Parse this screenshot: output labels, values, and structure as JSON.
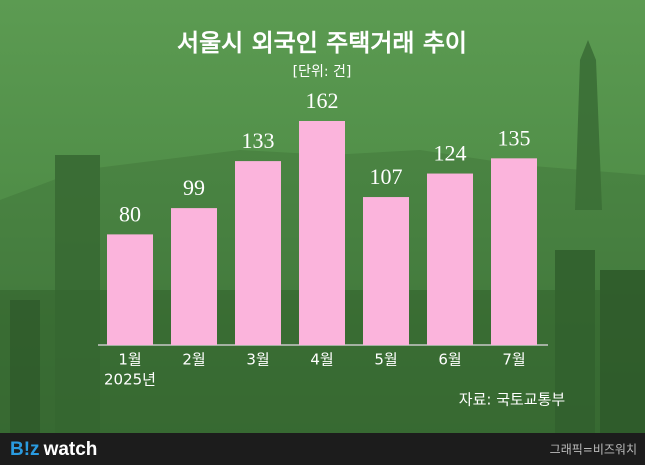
{
  "chart_data": {
    "type": "bar",
    "title": "서울시 외국인 주택거래 추이",
    "subtitle": "[단위: 건]",
    "categories": [
      "1월",
      "2월",
      "3월",
      "4월",
      "5월",
      "6월",
      "7월"
    ],
    "values": [
      80,
      99,
      133,
      162,
      107,
      124,
      135
    ],
    "color": "#fbb4dc",
    "year_label": "2025년",
    "source": "자료: 국토교통부"
  },
  "footer": {
    "logo_prefix": "B!z",
    "logo_suffix": "watch",
    "credit": "그래픽=비즈워치"
  }
}
